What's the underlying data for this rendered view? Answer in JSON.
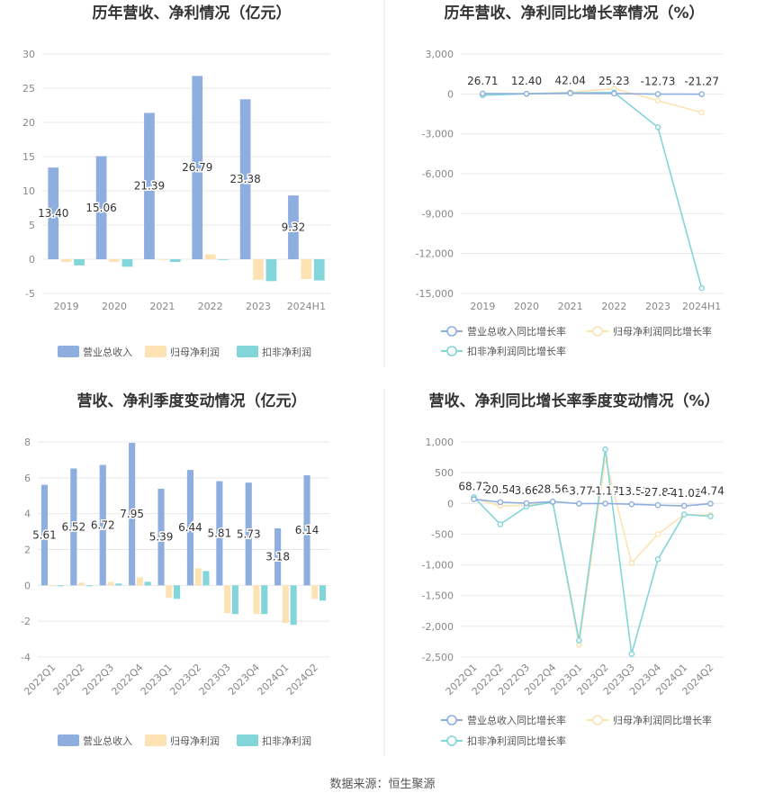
{
  "colors": {
    "revenue": "#8daedf",
    "net_profit": "#fde3b3",
    "deducted_profit": "#82d5d9",
    "grid": "#e8e8e8",
    "divider": "#e6e6e6"
  },
  "legends": {
    "bar": [
      "营业总收入",
      "归母净利润",
      "扣非净利润"
    ],
    "line": [
      "营业总收入同比增长率",
      "归母净利润同比增长率",
      "扣非净利润同比增长率"
    ]
  },
  "source": "数据来源：恒生聚源",
  "chart_data": [
    {
      "id": "annual-amount",
      "type": "bar",
      "title": "历年营收、净利情况（亿元）",
      "categories": [
        "2019",
        "2020",
        "2021",
        "2022",
        "2023",
        "2024H1"
      ],
      "ylim": [
        -5,
        30
      ],
      "yticks": [
        "30",
        "25",
        "20",
        "15",
        "10",
        "5",
        "0",
        "-5"
      ],
      "grid": true,
      "legend_position": "bottom",
      "series": [
        {
          "name": "营业总收入",
          "values": [
            13.4,
            15.06,
            21.39,
            26.79,
            23.38,
            9.32
          ],
          "labels": [
            "13.40",
            "15.06",
            "21.39",
            "26.79",
            "23.38",
            "9.32"
          ]
        },
        {
          "name": "归母净利润",
          "values": [
            -0.4,
            -0.4,
            -0.1,
            0.7,
            -3.0,
            -2.9
          ]
        },
        {
          "name": "扣非净利润",
          "values": [
            -0.9,
            -1.1,
            -0.4,
            -0.1,
            -3.2,
            -3.1
          ]
        }
      ]
    },
    {
      "id": "annual-growth",
      "type": "line",
      "title": "历年营收、净利同比增长率情况（%）",
      "categories": [
        "2019",
        "2020",
        "2021",
        "2022",
        "2023",
        "2024H1"
      ],
      "ylim": [
        -15000,
        3000
      ],
      "yticks": [
        "3,000",
        "0",
        "-3,000",
        "-6,000",
        "-9,000",
        "-12,000",
        "-15,000"
      ],
      "grid": true,
      "legend_position": "bottom",
      "series": [
        {
          "name": "营业总收入同比增长率",
          "values": [
            26.71,
            12.4,
            42.04,
            25.23,
            -12.73,
            -21.27
          ],
          "labels": [
            "26.71",
            "12.40",
            "42.04",
            "25.23",
            "-12.73",
            "-21.27"
          ]
        },
        {
          "name": "归母净利润同比增长率",
          "values": [
            -50,
            20,
            120,
            400,
            -500,
            -1400
          ]
        },
        {
          "name": "扣非净利润同比增长率",
          "values": [
            -100,
            10,
            80,
            100,
            -2500,
            -14600
          ]
        }
      ]
    },
    {
      "id": "quarter-amount",
      "type": "bar",
      "title": "营收、净利季度变动情况（亿元）",
      "categories": [
        "2022Q1",
        "2022Q2",
        "2022Q3",
        "2022Q4",
        "2023Q1",
        "2023Q2",
        "2023Q3",
        "2023Q4",
        "2024Q1",
        "2024Q2"
      ],
      "ylim": [
        -4,
        8
      ],
      "yticks": [
        "8",
        "6",
        "4",
        "2",
        "0",
        "-2",
        "-4"
      ],
      "grid": true,
      "legend_position": "bottom",
      "series": [
        {
          "name": "营业总收入",
          "values": [
            5.61,
            6.52,
            6.72,
            7.95,
            5.39,
            6.44,
            5.81,
            5.73,
            3.18,
            6.14
          ],
          "labels": [
            "5.61",
            "6.52",
            "6.72",
            "7.95",
            "5.39",
            "6.44",
            "5.81",
            "5.73",
            "3.18",
            "6.14"
          ]
        },
        {
          "name": "归母净利润",
          "values": [
            -0.05,
            0.15,
            0.2,
            0.45,
            -0.7,
            0.95,
            -1.55,
            -1.6,
            -2.1,
            -0.75
          ]
        },
        {
          "name": "扣非净利润",
          "values": [
            -0.05,
            -0.05,
            0.1,
            0.2,
            -0.75,
            0.8,
            -1.6,
            -1.6,
            -2.2,
            -0.85
          ]
        }
      ]
    },
    {
      "id": "quarter-growth",
      "type": "line",
      "title": "营收、净利同比增长率季度变动情况（%）",
      "categories": [
        "2022Q1",
        "2022Q2",
        "2022Q3",
        "2022Q4",
        "2023Q1",
        "2023Q2",
        "2023Q3",
        "2023Q4",
        "2024Q1",
        "2024Q2"
      ],
      "ylim": [
        -2500,
        1000
      ],
      "yticks": [
        "1,000",
        "500",
        "0",
        "-500",
        "-1,000",
        "-1,500",
        "-2,000",
        "-2,500"
      ],
      "grid": true,
      "legend_position": "bottom",
      "series": [
        {
          "name": "营业总收入同比增长率",
          "values": [
            68.72,
            20.54,
            3.66,
            28.56,
            -3.77,
            -1.17,
            -13.51,
            -27.87,
            -41.02,
            -4.74
          ],
          "labels": [
            "68.72",
            "20.54",
            "3.66",
            "28.56",
            "-3.77",
            "-1.17",
            "-13.51",
            "-27.87",
            "-41.02",
            "-4.74"
          ]
        },
        {
          "name": "归母净利润同比增长率",
          "values": [
            80,
            -40,
            -30,
            20,
            -2300,
            730,
            -970,
            -500,
            -180,
            -190
          ]
        },
        {
          "name": "扣非净利润同比增长率",
          "values": [
            100,
            -340,
            -50,
            20,
            -2230,
            880,
            -2450,
            -910,
            -180,
            -210
          ]
        }
      ]
    }
  ]
}
